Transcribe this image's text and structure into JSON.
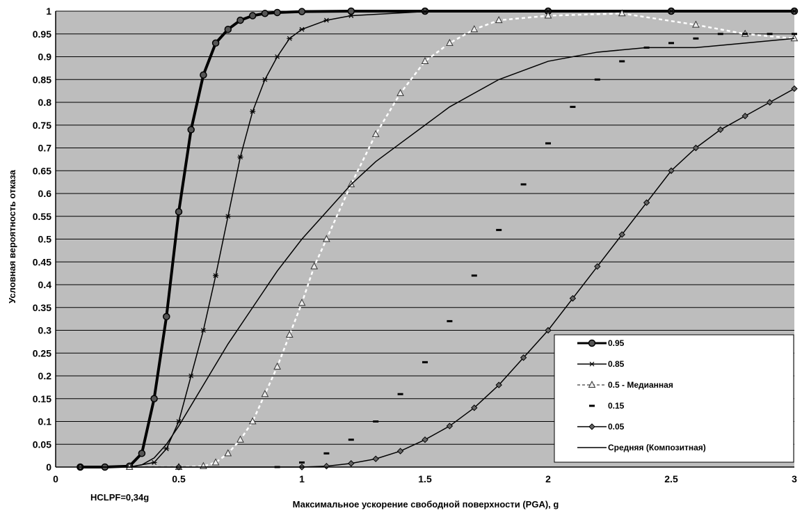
{
  "chart_data": {
    "type": "line",
    "title": "",
    "xlabel": "Максимальное ускорение свободной поверхности (PGA), g",
    "ylabel": "Условная вероятность отказа",
    "annotation": "HCLPF=0,34g",
    "xlim": [
      0,
      3
    ],
    "ylim": [
      0,
      1
    ],
    "x_ticks": [
      "0",
      "0.5",
      "1",
      "1.5",
      "2",
      "2.5",
      "3"
    ],
    "y_ticks": [
      "0",
      "0.05",
      "0.1",
      "0.15",
      "0.2",
      "0.25",
      "0.3",
      "0.35",
      "0.4",
      "0.45",
      "0.5",
      "0.55",
      "0.6",
      "0.65",
      "0.7",
      "0.75",
      "0.8",
      "0.85",
      "0.9",
      "0.95",
      "1"
    ],
    "grid": "horizontal",
    "legend_position": "bottom-right",
    "colors": {
      "plot_background": "#bdbdbd",
      "line": "#000000",
      "dashed_line": "#ffffff"
    },
    "series": [
      {
        "name": "0.95",
        "marker": "circle",
        "width": 4,
        "x": [
          0.1,
          0.2,
          0.3,
          0.35,
          0.4,
          0.45,
          0.5,
          0.55,
          0.6,
          0.65,
          0.7,
          0.75,
          0.8,
          0.85,
          0.9,
          1.0,
          1.2,
          1.5,
          2.0,
          2.5,
          3.0
        ],
        "y": [
          0,
          0,
          0.002,
          0.03,
          0.15,
          0.33,
          0.56,
          0.74,
          0.86,
          0.93,
          0.96,
          0.98,
          0.99,
          0.995,
          0.997,
          0.999,
          1,
          1,
          1,
          1,
          1
        ]
      },
      {
        "name": "0.85",
        "marker": "star",
        "width": 1.5,
        "x": [
          0.1,
          0.3,
          0.4,
          0.45,
          0.5,
          0.55,
          0.6,
          0.65,
          0.7,
          0.75,
          0.8,
          0.85,
          0.9,
          0.95,
          1.0,
          1.1,
          1.2,
          1.5,
          2.0,
          2.5,
          3.0
        ],
        "y": [
          0,
          0,
          0.01,
          0.04,
          0.1,
          0.2,
          0.3,
          0.42,
          0.55,
          0.68,
          0.78,
          0.85,
          0.9,
          0.94,
          0.96,
          0.98,
          0.99,
          0.999,
          1,
          1,
          1
        ]
      },
      {
        "name": "0.5 - Медианная",
        "marker": "triangle",
        "width": 2,
        "x": [
          0.3,
          0.5,
          0.6,
          0.65,
          0.7,
          0.75,
          0.8,
          0.85,
          0.9,
          0.95,
          1.0,
          1.05,
          1.1,
          1.2,
          1.3,
          1.4,
          1.5,
          1.6,
          1.7,
          1.8,
          2.0,
          2.3,
          2.6,
          2.8,
          3.0
        ],
        "y": [
          0,
          0,
          0.002,
          0.01,
          0.03,
          0.06,
          0.1,
          0.16,
          0.22,
          0.29,
          0.36,
          0.44,
          0.5,
          0.62,
          0.73,
          0.82,
          0.89,
          0.93,
          0.96,
          0.98,
          0.99,
          0.995,
          0.97,
          0.95,
          0.94
        ]
      },
      {
        "name": "0.15",
        "marker": "dash",
        "width": 2,
        "x": [
          0.5,
          0.9,
          1.0,
          1.1,
          1.2,
          1.3,
          1.4,
          1.5,
          1.6,
          1.7,
          1.8,
          1.9,
          2.0,
          2.1,
          2.2,
          2.3,
          2.4,
          2.5,
          2.6,
          2.7,
          2.8,
          2.9,
          3.0
        ],
        "y": [
          0,
          0,
          0.01,
          0.03,
          0.06,
          0.1,
          0.16,
          0.23,
          0.32,
          0.42,
          0.52,
          0.62,
          0.71,
          0.79,
          0.85,
          0.89,
          0.92,
          0.93,
          0.94,
          0.95,
          0.95,
          0.95,
          0.95
        ]
      },
      {
        "name": "0.05",
        "marker": "diamond",
        "width": 1.5,
        "x": [
          0.1,
          0.5,
          1.0,
          1.1,
          1.2,
          1.3,
          1.4,
          1.5,
          1.6,
          1.7,
          1.8,
          1.9,
          2.0,
          2.1,
          2.2,
          2.3,
          2.4,
          2.5,
          2.6,
          2.7,
          2.8,
          2.9,
          3.0
        ],
        "y": [
          0,
          0,
          0,
          0.002,
          0.008,
          0.018,
          0.035,
          0.06,
          0.09,
          0.13,
          0.18,
          0.24,
          0.3,
          0.37,
          0.44,
          0.51,
          0.58,
          0.65,
          0.7,
          0.74,
          0.77,
          0.8,
          0.83
        ]
      },
      {
        "name": "Средняя (Композитная)",
        "marker": "none",
        "width": 1.5,
        "x": [
          0.3,
          0.35,
          0.4,
          0.45,
          0.5,
          0.6,
          0.7,
          0.8,
          0.9,
          1.0,
          1.1,
          1.2,
          1.3,
          1.4,
          1.5,
          1.6,
          1.7,
          1.8,
          1.9,
          2.0,
          2.2,
          2.4,
          2.6,
          2.8,
          3.0
        ],
        "y": [
          0,
          0.005,
          0.02,
          0.05,
          0.09,
          0.18,
          0.27,
          0.35,
          0.43,
          0.5,
          0.56,
          0.62,
          0.67,
          0.71,
          0.75,
          0.79,
          0.82,
          0.85,
          0.87,
          0.89,
          0.91,
          0.92,
          0.92,
          0.93,
          0.94
        ]
      }
    ]
  }
}
